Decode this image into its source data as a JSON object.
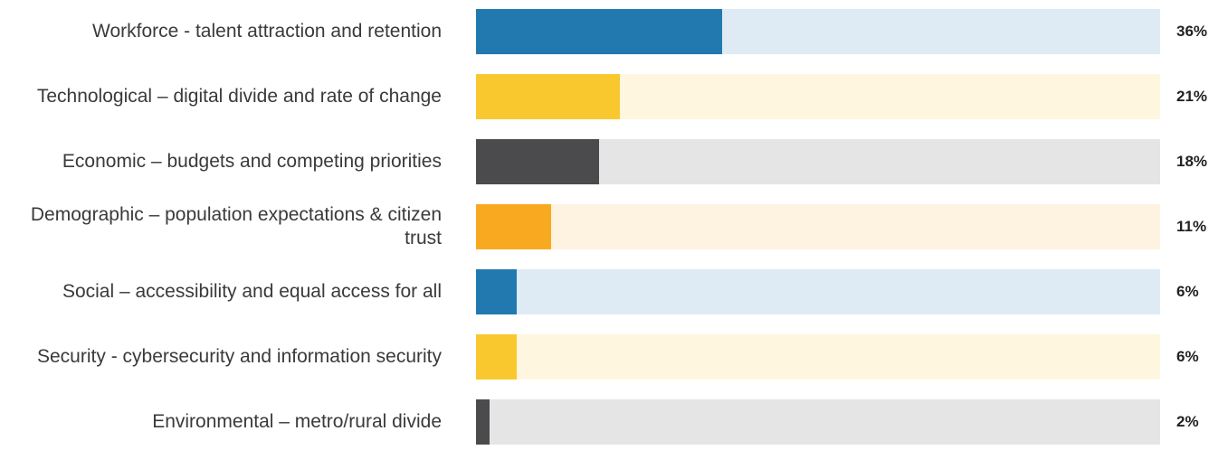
{
  "chart_data": {
    "type": "bar",
    "orientation": "horizontal",
    "categories": [
      "Workforce - talent attraction and retention",
      "Technological – digital divide and rate of change",
      "Economic – budgets and competing priorities",
      "Demographic – population expectations & citizen trust",
      "Social – accessibility and equal access for all",
      "Security - cybersecurity and information security",
      "Environmental – metro/rural divide"
    ],
    "values": [
      36,
      21,
      18,
      11,
      6,
      6,
      2
    ],
    "value_labels": [
      "36%",
      "21%",
      "18%",
      "11%",
      "6%",
      "6%",
      "2%"
    ],
    "colors": [
      "#2279b0",
      "#f9c82e",
      "#4b4b4d",
      "#f9a920",
      "#2279b0",
      "#f9c82e",
      "#4b4b4d"
    ],
    "track_colors": [
      "#deebf5",
      "#fef6df",
      "#e5e5e5",
      "#fef3e0",
      "#deebf5",
      "#fef6df",
      "#e5e5e5"
    ],
    "xlim": [
      0,
      100
    ],
    "grid": false
  }
}
